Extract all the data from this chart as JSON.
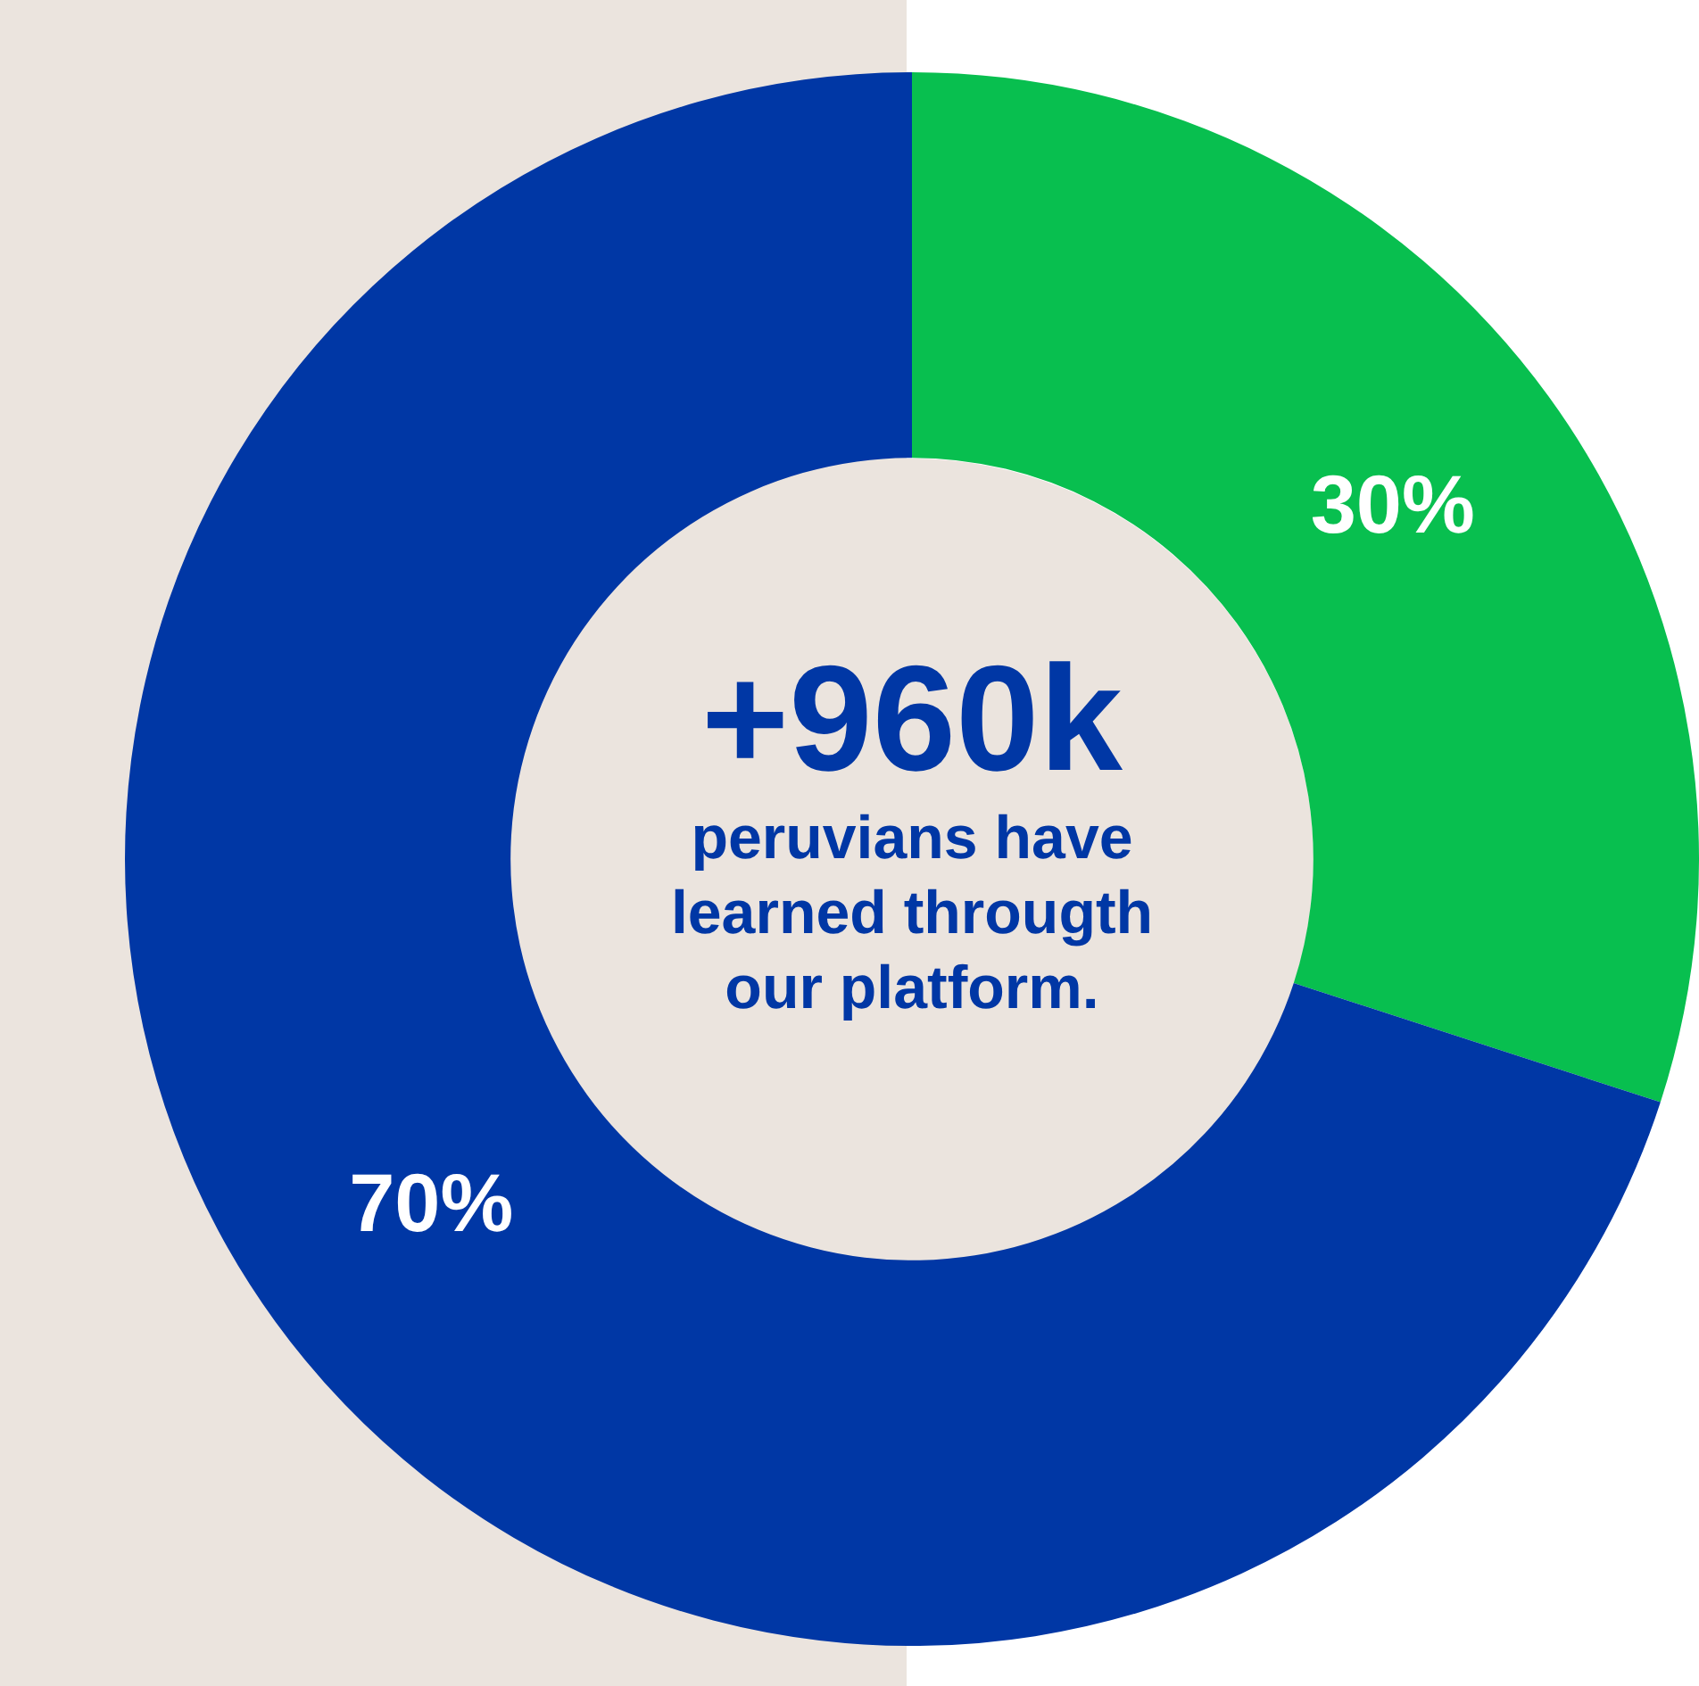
{
  "chart_data": {
    "type": "donut",
    "categories": [
      null,
      null
    ],
    "values": [
      30,
      70
    ],
    "colors": [
      "#08bf4f",
      "#0037a5"
    ],
    "value_labels": [
      "30%",
      "70%"
    ],
    "annotations": [
      "+960k",
      "peruvians have learned througth our platform."
    ],
    "legend": false
  }
}
